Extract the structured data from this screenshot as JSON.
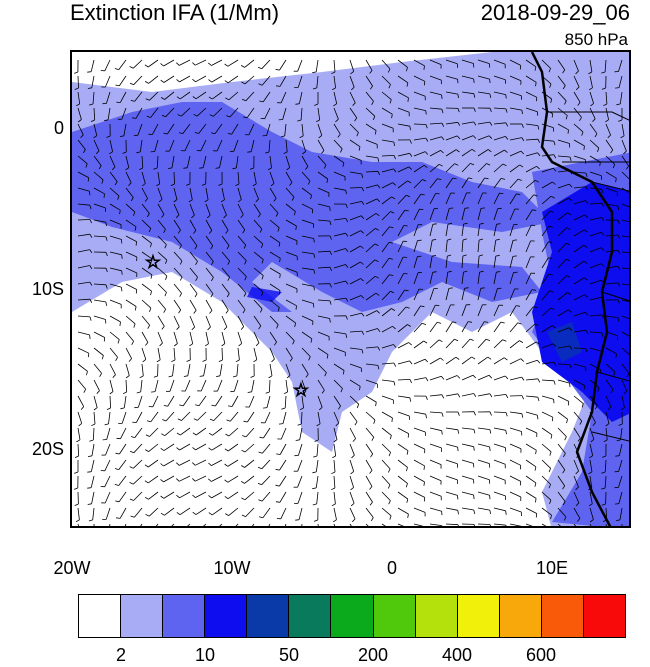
{
  "header": {
    "title": "Extinction IFA (1/Mm)",
    "datetime": "2018-09-29_06",
    "level": "850 hPa"
  },
  "axes": {
    "y_labels": [
      "0",
      "10S",
      "20S"
    ],
    "x_labels": [
      "20W",
      "10W",
      "0",
      "10E"
    ]
  },
  "colorbar": {
    "colors": [
      "#ffffff",
      "#a8acf5",
      "#5e63f0",
      "#0d0df0",
      "#0a3aa8",
      "#0a7a5c",
      "#0aaa1c",
      "#50c80c",
      "#b4e00c",
      "#f0f00a",
      "#f8a80a",
      "#f85a0a",
      "#f80a0a"
    ],
    "labels": [
      "2",
      "10",
      "50",
      "200",
      "400",
      "600"
    ]
  },
  "markers": [
    {
      "name": "star-marker",
      "lon": -14.3,
      "lat": -8.0
    },
    {
      "name": "star-marker",
      "lon": -5.7,
      "lat": -16.0
    }
  ]
}
